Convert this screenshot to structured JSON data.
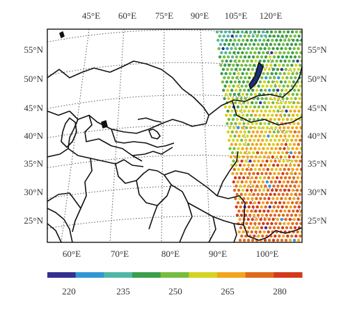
{
  "map": {
    "top_lon_labels": [
      "45°E",
      "60°E",
      "75°E",
      "90°E",
      "105°E",
      "120°E"
    ],
    "bottom_lon_labels": [
      "60°E",
      "70°E",
      "80°E",
      "90°E",
      "100°E"
    ],
    "left_lat_labels": [
      "55°N",
      "50°N",
      "45°N",
      "40°N",
      "35°N",
      "30°N",
      "25°N"
    ],
    "right_lat_labels": [
      "55°N",
      "50°N",
      "45°N",
      "40°N",
      "35°N",
      "30°N",
      "25°N"
    ]
  },
  "colorbar": {
    "colors": [
      "#34308f",
      "#2f97d3",
      "#50b6a6",
      "#3a9e4a",
      "#76bd3f",
      "#d4d420",
      "#f2a51c",
      "#e0691c",
      "#d23a1b"
    ],
    "tick_labels": [
      "220",
      "235",
      "250",
      "265",
      "280"
    ],
    "ticks": [
      220,
      235,
      250,
      265,
      280
    ],
    "range": [
      215,
      285
    ]
  },
  "data_points_summary": {
    "gradient": "cooler green/teal in north, warmer yellow/orange/red toward south-east"
  }
}
